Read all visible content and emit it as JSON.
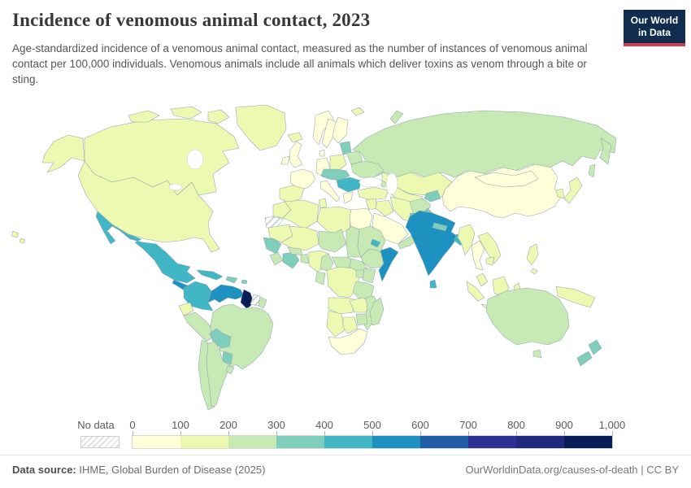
{
  "header": {
    "title": "Incidence of venomous animal contact, 2023",
    "subtitle": "Age-standardized incidence of a venomous animal contact, measured as the number of instances of venomous animal contact per 100,000 individuals. Venomous animals include all animals which deliver toxins as venom through a bite or sting.",
    "logo": {
      "line1": "Our World",
      "line2": "in Data",
      "bg": "#102d4f",
      "accent": "#cf3e4e"
    }
  },
  "footer": {
    "source_prefix": "Data source:",
    "source": "IHME, Global Burden of Disease (2025)",
    "credit": "OurWorldinData.org/causes-of-death | CC BY"
  },
  "chart_data": {
    "type": "choropleth_world_map",
    "title": "Incidence of venomous animal contact",
    "year": "2023",
    "unit": "venomous animal contacts per 100,000 individuals (age-standardized)",
    "projection": "world map, simplified",
    "legend": {
      "no_data_label": "No data",
      "tick_labels": [
        "0",
        "100",
        "200",
        "300",
        "400",
        "500",
        "600",
        "700",
        "800",
        "900",
        "1,000"
      ],
      "bins": [
        {
          "range": "0-100",
          "color": "#ffffd9"
        },
        {
          "range": "100-200",
          "color": "#edf8b1"
        },
        {
          "range": "200-300",
          "color": "#c7e9b4"
        },
        {
          "range": "300-400",
          "color": "#7fcdbb"
        },
        {
          "range": "400-500",
          "color": "#41b6c4"
        },
        {
          "range": "500-600",
          "color": "#1d91c0"
        },
        {
          "range": "600-700",
          "color": "#225ea8"
        },
        {
          "range": "700-800",
          "color": "#2d3194"
        },
        {
          "range": "800-900",
          "color": "#1f2a7d"
        },
        {
          "range": "900-1000",
          "color": "#081d58"
        }
      ],
      "no_data_pattern": "diagonal-hatch"
    },
    "regions": {
      "canada": {
        "label": "Canada",
        "bin": "100-200"
      },
      "usa": {
        "label": "United States",
        "bin": "100-200"
      },
      "greenland": {
        "label": "Greenland",
        "bin": "100-200"
      },
      "iceland": {
        "label": "Iceland",
        "bin": "100-200"
      },
      "mexico": {
        "label": "Mexico",
        "bin": "400-500"
      },
      "central-america": {
        "label": "Central America",
        "bin": "500-600"
      },
      "cuba": {
        "label": "Cuba",
        "bin": "400-500"
      },
      "hispaniola": {
        "label": "Hispaniola",
        "bin": "300-400"
      },
      "puerto-rico": {
        "label": "Puerto Rico",
        "bin": "300-400"
      },
      "colombia": {
        "label": "Colombia",
        "bin": "400-500"
      },
      "venezuela": {
        "label": "Venezuela",
        "bin": "500-600"
      },
      "guyana": {
        "label": "Guyana",
        "bin": "900-1000"
      },
      "suriname": {
        "label": "Suriname",
        "bin": "no-data"
      },
      "french-guiana": {
        "label": "French Guiana",
        "bin": "200-300"
      },
      "ecuador": {
        "label": "Ecuador",
        "bin": "100-200"
      },
      "peru": {
        "label": "Peru",
        "bin": "200-300"
      },
      "brazil": {
        "label": "Brazil",
        "bin": "200-300"
      },
      "bolivia": {
        "label": "Bolivia",
        "bin": "300-400"
      },
      "paraguay": {
        "label": "Paraguay",
        "bin": "300-400"
      },
      "chile": {
        "label": "Chile",
        "bin": "200-300"
      },
      "argentina": {
        "label": "Argentina",
        "bin": "200-300"
      },
      "uruguay": {
        "label": "Uruguay",
        "bin": "200-300"
      },
      "uk": {
        "label": "United Kingdom",
        "bin": "0-100"
      },
      "ireland": {
        "label": "Ireland",
        "bin": "0-100"
      },
      "norway": {
        "label": "Norway",
        "bin": "0-100"
      },
      "svalbard": {
        "label": "Svalbard",
        "bin": "100-200"
      },
      "sweden": {
        "label": "Sweden",
        "bin": "0-100"
      },
      "finland": {
        "label": "Finland",
        "bin": "0-100"
      },
      "denmark": {
        "label": "Denmark",
        "bin": "0-100"
      },
      "germany": {
        "label": "Germany",
        "bin": "0-100"
      },
      "france": {
        "label": "France",
        "bin": "0-100"
      },
      "iberia": {
        "label": "Spain / Portugal",
        "bin": "100-200"
      },
      "italy": {
        "label": "Italy",
        "bin": "0-100"
      },
      "poland": {
        "label": "Poland",
        "bin": "100-200"
      },
      "baltics": {
        "label": "Baltic states",
        "bin": "300-400"
      },
      "belarus": {
        "label": "Belarus",
        "bin": "200-300"
      },
      "ukraine": {
        "label": "Ukraine",
        "bin": "200-300"
      },
      "central-europe": {
        "label": "Czechia / Slovakia / Hungary / Austria",
        "bin": "300-400"
      },
      "balkans": {
        "label": "Romania / Serbia / Bulgaria",
        "bin": "400-500"
      },
      "greece": {
        "label": "Greece",
        "bin": "0-100"
      },
      "turkey": {
        "label": "Turkey",
        "bin": "100-200"
      },
      "russia": {
        "label": "Russia",
        "bin": "200-300"
      },
      "kazakhstan": {
        "label": "Kazakhstan",
        "bin": "100-200"
      },
      "central-asia": {
        "label": "Uzbekistan / Turkmenistan",
        "bin": "100-200"
      },
      "kyrgyz-tajik": {
        "label": "Kyrgyzstan / Tajikistan",
        "bin": "300-400"
      },
      "caucasus": {
        "label": "Caucasus",
        "bin": "200-300"
      },
      "levant": {
        "label": "Levant",
        "bin": "100-200"
      },
      "iraq": {
        "label": "Iraq",
        "bin": "100-200"
      },
      "iran": {
        "label": "Iran",
        "bin": "100-200"
      },
      "saudi-arabia": {
        "label": "Saudi Arabia",
        "bin": "0-100"
      },
      "yemen-oman": {
        "label": "Yemen / Oman",
        "bin": "200-300"
      },
      "afghanistan": {
        "label": "Afghanistan",
        "bin": "200-300"
      },
      "pakistan": {
        "label": "Pakistan",
        "bin": "300-400"
      },
      "india": {
        "label": "India",
        "bin": "500-600"
      },
      "nepal": {
        "label": "Nepal",
        "bin": "300-400"
      },
      "bangladesh": {
        "label": "Bangladesh",
        "bin": "400-500"
      },
      "sri-lanka": {
        "label": "Sri Lanka",
        "bin": "400-500"
      },
      "china": {
        "label": "China",
        "bin": "0-100"
      },
      "mongolia": {
        "label": "Mongolia",
        "bin": "0-100"
      },
      "korea": {
        "label": "South Korea",
        "bin": "100-200"
      },
      "japan": {
        "label": "Japan",
        "bin": "100-200"
      },
      "myanmar": {
        "label": "Myanmar",
        "bin": "100-200"
      },
      "thailand": {
        "label": "Thailand",
        "bin": "0-100"
      },
      "vietnam-laos": {
        "label": "Vietnam / Laos",
        "bin": "100-200"
      },
      "cambodia": {
        "label": "Cambodia",
        "bin": "100-200"
      },
      "malaysia": {
        "label": "Malaysia",
        "bin": "100-200"
      },
      "philippines": {
        "label": "Philippines",
        "bin": "100-200"
      },
      "indonesia": {
        "label": "Indonesia",
        "bin": "100-200"
      },
      "new-guinea": {
        "label": "Papua New Guinea",
        "bin": "100-200"
      },
      "australia": {
        "label": "Australia",
        "bin": "200-300"
      },
      "new-zealand": {
        "label": "New Zealand",
        "bin": "300-400"
      },
      "morocco": {
        "label": "Morocco",
        "bin": "100-200"
      },
      "western-sahara": {
        "label": "Western Sahara",
        "bin": "no-data"
      },
      "algeria": {
        "label": "Algeria",
        "bin": "100-200"
      },
      "tunisia": {
        "label": "Tunisia",
        "bin": "100-200"
      },
      "libya": {
        "label": "Libya",
        "bin": "100-200"
      },
      "egypt": {
        "label": "Egypt",
        "bin": "0-100"
      },
      "mauritania": {
        "label": "Mauritania",
        "bin": "100-200"
      },
      "mali": {
        "label": "Mali",
        "bin": "100-200"
      },
      "niger": {
        "label": "Niger",
        "bin": "200-300"
      },
      "chad": {
        "label": "Chad",
        "bin": "200-300"
      },
      "sudan": {
        "label": "Sudan",
        "bin": "200-300"
      },
      "eritrea": {
        "label": "Eritrea",
        "bin": "400-500"
      },
      "ethiopia": {
        "label": "Ethiopia",
        "bin": "200-300"
      },
      "somalia": {
        "label": "Somalia",
        "bin": "500-600"
      },
      "senegal-guinea": {
        "label": "Senegal / Guinea",
        "bin": "300-400"
      },
      "sierra-liberia": {
        "label": "Sierra Leone / Liberia",
        "bin": "200-300"
      },
      "ivory-ghana": {
        "label": "Côte d'Ivoire / Ghana",
        "bin": "300-400"
      },
      "burkina": {
        "label": "Burkina Faso",
        "bin": "200-300"
      },
      "togo-benin": {
        "label": "Togo / Benin",
        "bin": "200-300"
      },
      "nigeria": {
        "label": "Nigeria",
        "bin": "100-200"
      },
      "cameroon": {
        "label": "Cameroon",
        "bin": "200-300"
      },
      "car": {
        "label": "Central African Republic",
        "bin": "200-300"
      },
      "south-sudan": {
        "label": "South Sudan",
        "bin": "200-300"
      },
      "gabon-congo": {
        "label": "Gabon / Congo",
        "bin": "200-300"
      },
      "drc": {
        "label": "DR Congo",
        "bin": "100-200"
      },
      "uganda": {
        "label": "Uganda",
        "bin": "200-300"
      },
      "kenya": {
        "label": "Kenya",
        "bin": "200-300"
      },
      "tanzania": {
        "label": "Tanzania",
        "bin": "200-300"
      },
      "angola": {
        "label": "Angola",
        "bin": "100-200"
      },
      "zambia": {
        "label": "Zambia",
        "bin": "100-200"
      },
      "malawi-mozambique": {
        "label": "Malawi / Mozambique",
        "bin": "200-300"
      },
      "zimbabwe": {
        "label": "Zimbabwe",
        "bin": "200-300"
      },
      "namibia": {
        "label": "Namibia",
        "bin": "100-200"
      },
      "botswana": {
        "label": "Botswana",
        "bin": "100-200"
      },
      "south-africa": {
        "label": "South Africa",
        "bin": "0-100"
      },
      "madagascar": {
        "label": "Madagascar",
        "bin": "200-300"
      }
    }
  }
}
